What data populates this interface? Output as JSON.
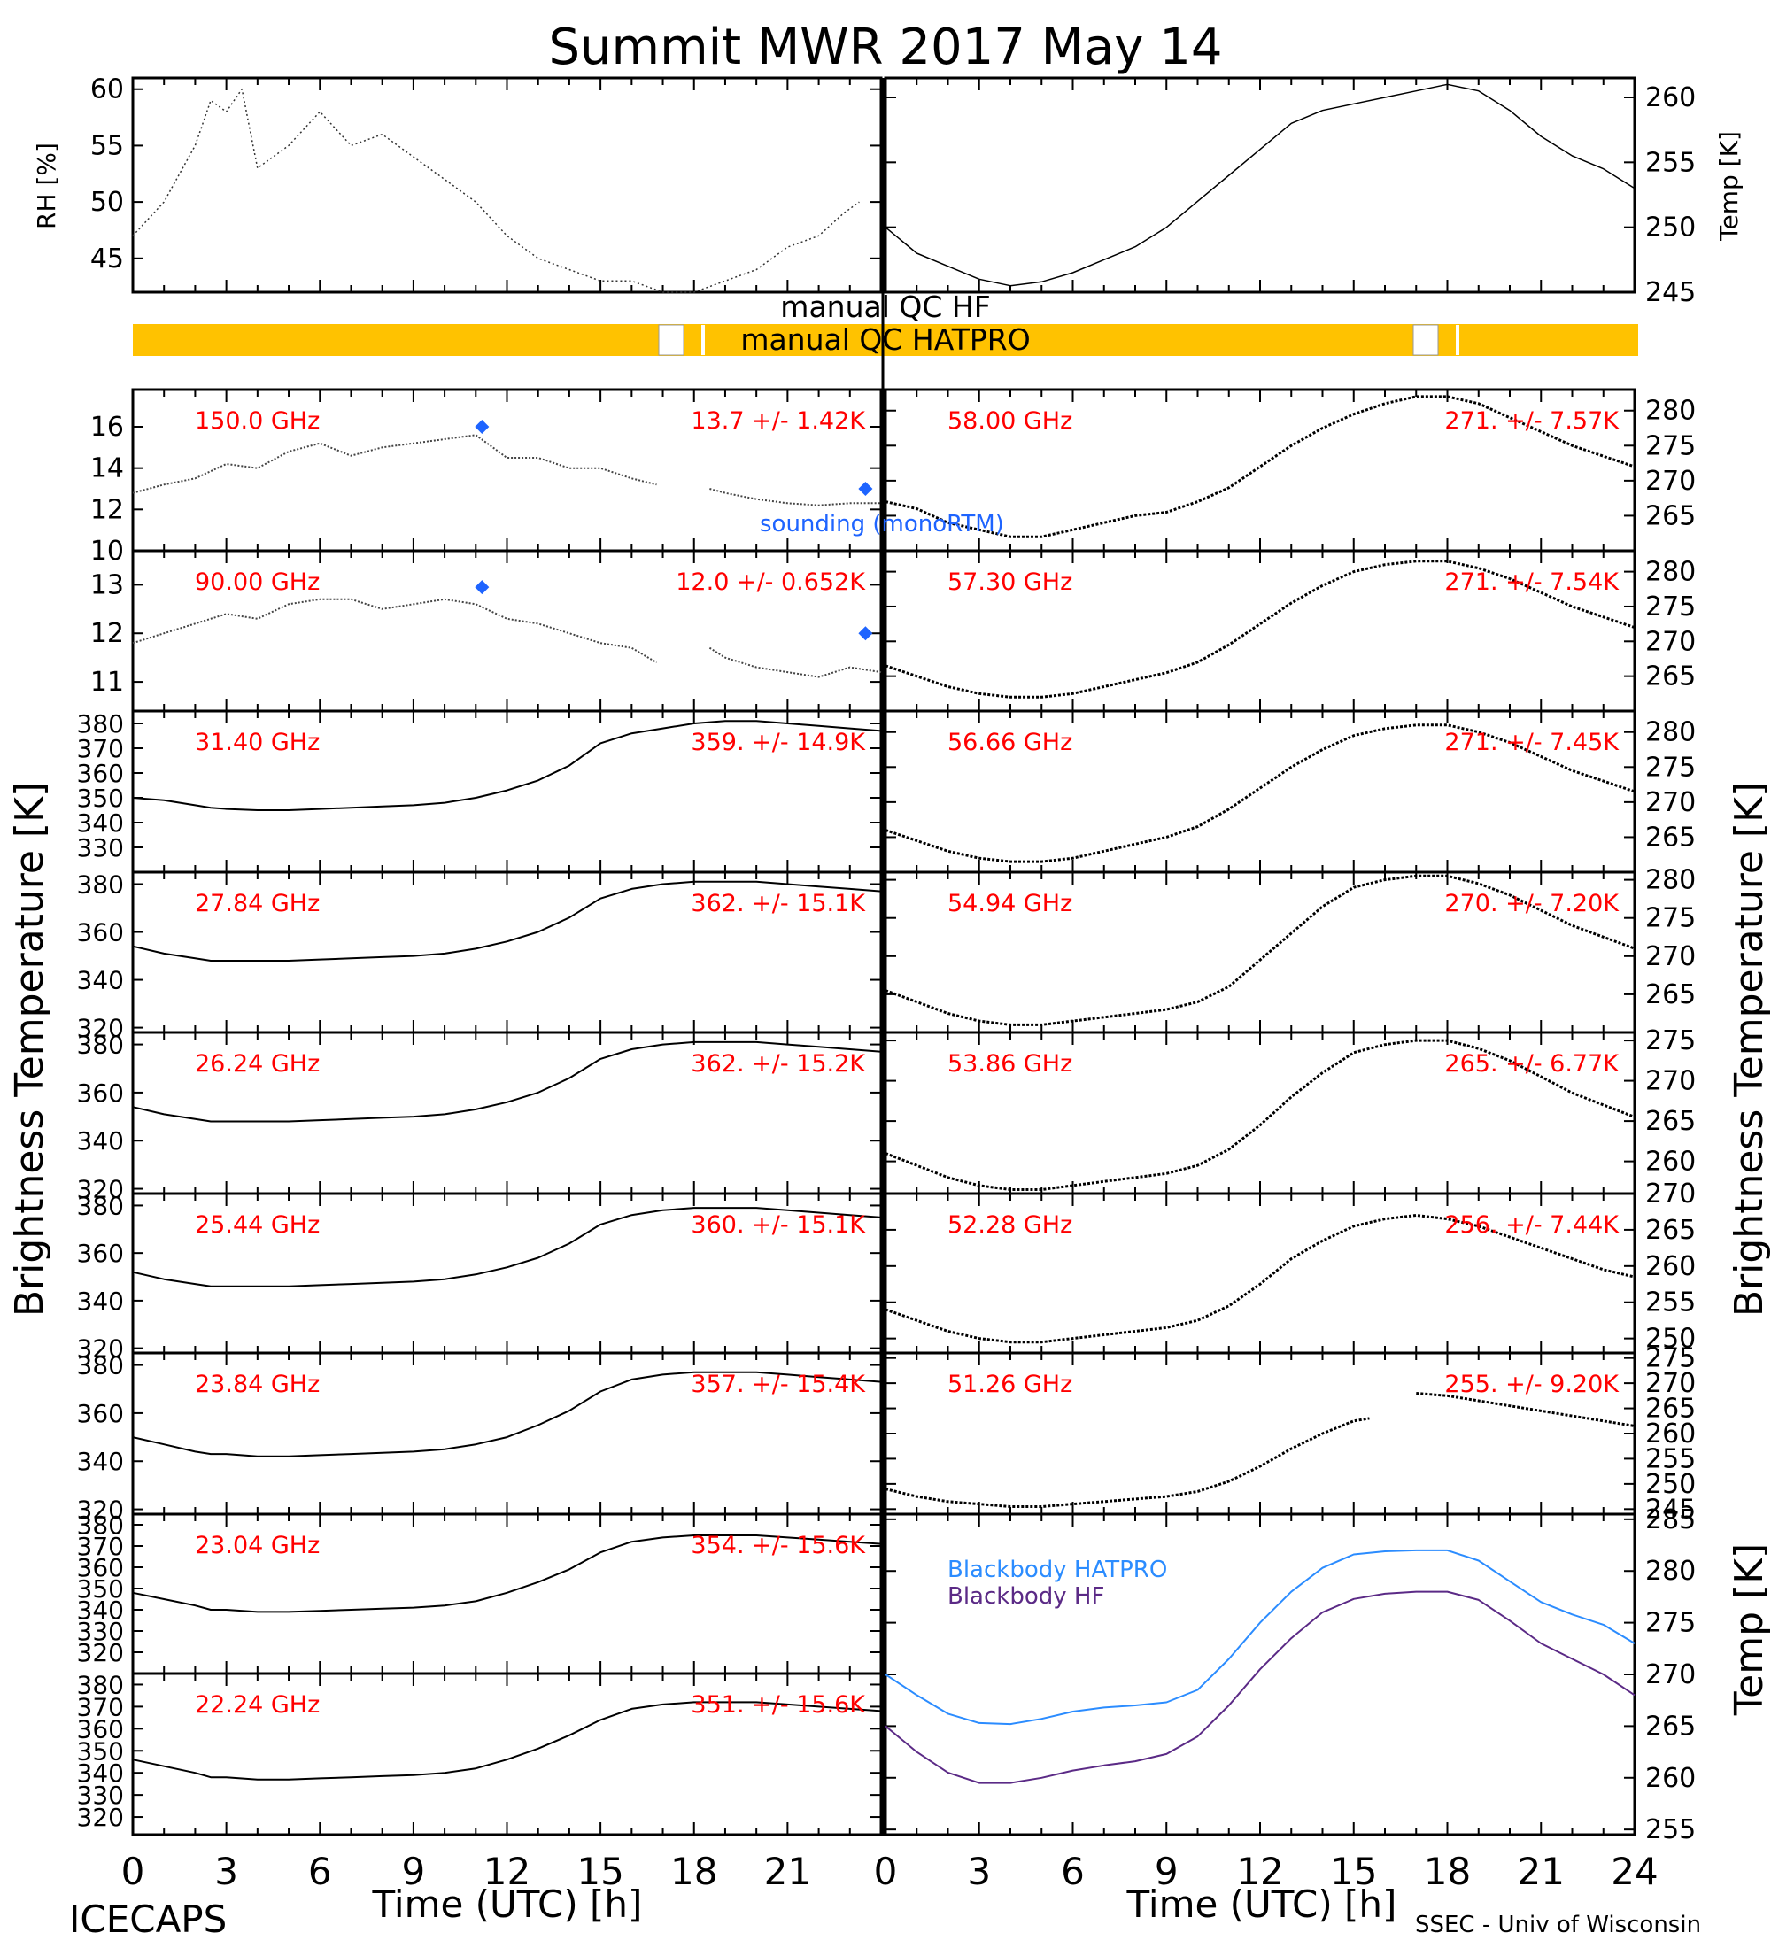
{
  "title": "Summit MWR 2017 May 14",
  "footer": {
    "left": "ICECAPS",
    "right": "SSEC - Univ of Wisconsin"
  },
  "colors": {
    "qc_bar": "#FFC200",
    "label_red": "#FF0000",
    "sounding_blue": "#1E64FF",
    "bb_hatpro": "#2B8CFF",
    "bb_hf": "#5B2A86",
    "trace": "#000000"
  },
  "qc": {
    "label_hf": "manual QC HF",
    "label_hatpro": "manual QC HATPRO"
  },
  "axis_titles": {
    "rh": "RH [%]",
    "temp": "Temp [K]",
    "brightness": "Brightness Temperature [K]",
    "time": "Time (UTC) [h]"
  },
  "annotations": {
    "sounding": "sounding (monoRTM)",
    "bb_hatpro": "Blackbody HATPRO",
    "bb_hf": "Blackbody HF"
  },
  "x_ticks_left": [
    "0",
    "3",
    "6",
    "9",
    "12",
    "15",
    "18",
    "21"
  ],
  "x_ticks_right": [
    "0",
    "3",
    "6",
    "9",
    "12",
    "15",
    "18",
    "21",
    "24"
  ],
  "chart_data": [
    {
      "type": "line",
      "panel": "rh",
      "ylabel": "RH [%]",
      "x": [
        0,
        1,
        2,
        2.5,
        3,
        3.5,
        4,
        5,
        6,
        7,
        8,
        9,
        10,
        11,
        12,
        13,
        14,
        15,
        16,
        17,
        18,
        19,
        20,
        21,
        22,
        22.8,
        23.3
      ],
      "values": [
        47,
        50,
        55,
        59,
        58,
        60,
        53,
        55,
        58,
        55,
        56,
        54,
        52,
        50,
        47,
        45,
        44,
        43,
        43,
        42,
        42,
        43,
        44,
        46,
        47,
        49,
        50
      ],
      "ylim": [
        42,
        61
      ],
      "yticks": [
        45,
        50,
        55,
        60
      ],
      "xlim": [
        0,
        23.3
      ]
    },
    {
      "type": "line",
      "panel": "temp",
      "ylabel": "Temp [K]",
      "x": [
        0,
        1,
        2,
        3,
        4,
        5,
        6,
        7,
        8,
        9,
        10,
        11,
        12,
        13,
        14,
        15,
        16,
        17,
        18,
        19,
        20,
        21,
        22,
        23,
        24
      ],
      "values": [
        250,
        248,
        247,
        246,
        245.5,
        245.8,
        246.5,
        247.5,
        248.5,
        250,
        252,
        254,
        256,
        258,
        259,
        259.5,
        260,
        260.5,
        261,
        260.5,
        259,
        257,
        255.5,
        254.5,
        253
      ],
      "ylim": [
        245,
        261.5
      ],
      "yticks": [
        245,
        250,
        255,
        260
      ],
      "xlim": [
        0,
        24
      ]
    },
    {
      "type": "line",
      "panel": "tb",
      "label": "150.0 GHz",
      "stat": "13.7 +/- 1.42K",
      "x": [
        0,
        1,
        2,
        3,
        4,
        5,
        6,
        7,
        8,
        9,
        10,
        11,
        12,
        13,
        14,
        15,
        16,
        16.8,
        17.8,
        18.5,
        19,
        20,
        21,
        22,
        23,
        24
      ],
      "values": [
        12.8,
        13.2,
        13.5,
        14.2,
        14,
        14.8,
        15.2,
        14.6,
        15,
        15.2,
        15.4,
        15.6,
        14.5,
        14.5,
        14,
        14,
        13.5,
        13.2,
        null,
        13,
        12.8,
        12.5,
        12.3,
        12.2,
        12.3,
        12.3
      ],
      "ylim": [
        10,
        17.8
      ],
      "yticks": [
        10,
        12,
        14,
        16
      ],
      "sounding": {
        "x": [
          11.2,
          23.5
        ],
        "values": [
          16,
          13
        ]
      }
    },
    {
      "type": "line",
      "panel": "tb",
      "label": "58.00 GHz",
      "stat": "271. +/- 7.57K",
      "x": [
        0,
        1,
        2,
        3,
        4,
        5,
        6,
        7,
        8,
        9,
        10,
        11,
        12,
        13,
        14,
        15,
        16,
        17,
        18,
        19,
        20,
        21,
        22,
        23,
        24
      ],
      "values": [
        267,
        266,
        264,
        263,
        262,
        262,
        263,
        264,
        265,
        265.5,
        267,
        269,
        272,
        275,
        277.5,
        279.5,
        281,
        282,
        282,
        281,
        279,
        277,
        275,
        273.5,
        272
      ],
      "ylim": [
        260,
        283
      ],
      "yticks": [
        265,
        270,
        275,
        280
      ]
    },
    {
      "type": "line",
      "panel": "tb",
      "label": "90.00 GHz",
      "stat": "12.0 +/- 0.652K",
      "x": [
        0,
        1,
        2,
        3,
        4,
        5,
        6,
        7,
        8,
        9,
        10,
        11,
        12,
        13,
        14,
        15,
        16,
        16.8,
        17.8,
        18.5,
        19,
        20,
        21,
        22,
        23,
        24
      ],
      "values": [
        11.8,
        12,
        12.2,
        12.4,
        12.3,
        12.6,
        12.7,
        12.7,
        12.5,
        12.6,
        12.7,
        12.6,
        12.3,
        12.2,
        12,
        11.8,
        11.7,
        11.4,
        null,
        11.7,
        11.5,
        11.3,
        11.2,
        11.1,
        11.3,
        11.2
      ],
      "ylim": [
        10.4,
        13.7
      ],
      "yticks": [
        11,
        12,
        13
      ],
      "sounding": {
        "x": [
          11.2,
          23.5
        ],
        "values": [
          12.95,
          12
        ]
      }
    },
    {
      "type": "line",
      "panel": "tb",
      "label": "57.30 GHz",
      "stat": "271. +/- 7.54K",
      "x": [
        0,
        1,
        2,
        3,
        4,
        5,
        6,
        7,
        8,
        9,
        10,
        11,
        12,
        13,
        14,
        15,
        16,
        17,
        18,
        19,
        20,
        21,
        22,
        23,
        24
      ],
      "values": [
        266.5,
        265,
        263.5,
        262.5,
        262,
        262,
        262.5,
        263.5,
        264.5,
        265.5,
        267,
        269.5,
        272.5,
        275.5,
        278,
        280,
        281,
        281.5,
        281.5,
        280.5,
        279,
        277,
        275,
        273.5,
        272
      ],
      "ylim": [
        260,
        283
      ],
      "yticks": [
        265,
        270,
        275,
        280
      ]
    },
    {
      "type": "line",
      "panel": "tb",
      "label": "31.40 GHz",
      "stat": "359. +/- 14.9K",
      "x": [
        0,
        1,
        2,
        2.5,
        3,
        4,
        5,
        6,
        7,
        8,
        9,
        10,
        11,
        12,
        13,
        14,
        15,
        16,
        17,
        18,
        19,
        20,
        21,
        22,
        23,
        24
      ],
      "values": [
        350,
        349,
        347,
        346,
        345.5,
        345,
        345,
        345.5,
        346,
        346.5,
        347,
        348,
        350,
        353,
        357,
        363,
        372,
        376,
        378,
        380,
        381,
        381,
        380,
        379,
        378,
        377
      ],
      "ylim": [
        320,
        385
      ],
      "yticks": [
        330,
        340,
        350,
        360,
        370,
        380
      ]
    },
    {
      "type": "line",
      "panel": "tb",
      "label": "56.66 GHz",
      "stat": "271. +/- 7.45K",
      "x": [
        0,
        1,
        2,
        3,
        4,
        5,
        6,
        7,
        8,
        9,
        10,
        11,
        12,
        13,
        14,
        15,
        16,
        17,
        18,
        19,
        20,
        21,
        22,
        23,
        24
      ],
      "values": [
        266,
        264.5,
        263,
        262,
        261.5,
        261.5,
        262,
        263,
        264,
        265,
        266.5,
        269,
        272,
        275,
        277.5,
        279.5,
        280.5,
        281,
        281,
        280,
        278.5,
        276.5,
        274.5,
        273,
        271.5
      ],
      "ylim": [
        260,
        283
      ],
      "yticks": [
        265,
        270,
        275,
        280
      ]
    },
    {
      "type": "line",
      "panel": "tb",
      "label": "27.84 GHz",
      "stat": "362. +/- 15.1K",
      "x": [
        0,
        1,
        2,
        2.5,
        3,
        4,
        5,
        6,
        7,
        8,
        9,
        10,
        11,
        12,
        13,
        14,
        15,
        16,
        17,
        18,
        19,
        20,
        21,
        22,
        23,
        24
      ],
      "values": [
        354,
        351,
        349,
        348,
        348,
        348,
        348,
        348.5,
        349,
        349.5,
        350,
        351,
        353,
        356,
        360,
        366,
        374,
        378,
        380,
        381,
        381,
        381,
        380,
        379,
        378,
        377
      ],
      "ylim": [
        318,
        385
      ],
      "yticks": [
        320,
        340,
        360,
        380
      ]
    },
    {
      "type": "line",
      "panel": "tb",
      "label": "54.94 GHz",
      "stat": "270. +/- 7.20K",
      "x": [
        0,
        1,
        2,
        3,
        4,
        5,
        6,
        7,
        8,
        9,
        10,
        11,
        12,
        13,
        14,
        15,
        16,
        17,
        18,
        19,
        20,
        21,
        22,
        23,
        24
      ],
      "values": [
        265.5,
        264,
        262.5,
        261.5,
        261,
        261,
        261.5,
        262,
        262.5,
        263,
        264,
        266,
        269.5,
        273,
        276.5,
        279,
        280,
        280.5,
        280.5,
        279.5,
        278,
        276,
        274,
        272.5,
        271
      ],
      "ylim": [
        260,
        281
      ],
      "yticks": [
        265,
        270,
        275,
        280
      ]
    },
    {
      "type": "line",
      "panel": "tb",
      "label": "26.24 GHz",
      "stat": "362. +/- 15.2K",
      "x": [
        0,
        1,
        2,
        2.5,
        3,
        4,
        5,
        6,
        7,
        8,
        9,
        10,
        11,
        12,
        13,
        14,
        15,
        16,
        17,
        18,
        19,
        20,
        21,
        22,
        23,
        24
      ],
      "values": [
        354,
        351,
        349,
        348,
        348,
        348,
        348,
        348.5,
        349,
        349.5,
        350,
        351,
        353,
        356,
        360,
        366,
        374,
        378,
        380,
        381,
        381,
        381,
        380,
        379,
        378,
        377
      ],
      "ylim": [
        318,
        385
      ],
      "yticks": [
        320,
        340,
        360,
        380
      ]
    },
    {
      "type": "line",
      "panel": "tb",
      "label": "53.86 GHz",
      "stat": "265. +/- 6.77K",
      "x": [
        0,
        1,
        2,
        3,
        4,
        5,
        6,
        7,
        8,
        9,
        10,
        11,
        12,
        13,
        14,
        15,
        16,
        17,
        18,
        19,
        20,
        21,
        22,
        23,
        24
      ],
      "values": [
        261,
        259.5,
        258,
        257,
        256.5,
        256.5,
        257,
        257.5,
        258,
        258.5,
        259.5,
        261.5,
        264.5,
        268,
        271,
        273.5,
        274.5,
        275,
        275,
        274,
        272.5,
        270.5,
        268.5,
        267,
        265.5
      ],
      "ylim": [
        256,
        276
      ],
      "yticks": [
        260,
        265,
        270,
        275
      ]
    },
    {
      "type": "line",
      "panel": "tb",
      "label": "25.44 GHz",
      "stat": "360. +/- 15.1K",
      "x": [
        0,
        1,
        2,
        2.5,
        3,
        4,
        5,
        6,
        7,
        8,
        9,
        10,
        11,
        12,
        13,
        14,
        15,
        16,
        17,
        18,
        19,
        20,
        21,
        22,
        23,
        24
      ],
      "values": [
        352,
        349,
        347,
        346,
        346,
        346,
        346,
        346.5,
        347,
        347.5,
        348,
        349,
        351,
        354,
        358,
        364,
        372,
        376,
        378,
        379,
        379,
        379,
        378,
        377,
        376,
        375
      ],
      "ylim": [
        318,
        385
      ],
      "yticks": [
        320,
        340,
        360,
        380
      ]
    },
    {
      "type": "line",
      "panel": "tb",
      "label": "52.28 GHz",
      "stat": "256. +/- 7.44K",
      "x": [
        0,
        1,
        2,
        3,
        4,
        5,
        6,
        7,
        8,
        9,
        10,
        11,
        12,
        13,
        14,
        15,
        16,
        17,
        18,
        19,
        20,
        21,
        22,
        23,
        24
      ],
      "values": [
        254,
        252.5,
        251,
        250,
        249.5,
        249.5,
        250,
        250.5,
        251,
        251.5,
        252.5,
        254.5,
        257.5,
        261,
        263.5,
        265.5,
        266.5,
        267,
        266.5,
        265.5,
        264,
        262.5,
        261,
        259.5,
        258.5
      ],
      "ylim": [
        248,
        270
      ],
      "yticks": [
        250,
        255,
        260,
        265,
        270
      ]
    },
    {
      "type": "line",
      "panel": "tb",
      "label": "23.84 GHz",
      "stat": "357. +/- 15.4K",
      "x": [
        0,
        1,
        2,
        2.5,
        3,
        4,
        5,
        6,
        7,
        8,
        9,
        10,
        11,
        12,
        13,
        14,
        15,
        16,
        17,
        18,
        19,
        20,
        21,
        22,
        23,
        24
      ],
      "values": [
        350,
        347,
        344,
        343,
        343,
        342,
        342,
        342.5,
        343,
        343.5,
        344,
        345,
        347,
        350,
        355,
        361,
        369,
        374,
        376,
        377,
        377,
        377,
        376,
        375,
        374,
        373
      ],
      "ylim": [
        318,
        385
      ],
      "yticks": [
        320,
        340,
        360,
        380
      ]
    },
    {
      "type": "line",
      "panel": "tb",
      "label": "51.26 GHz",
      "stat": "255. +/- 9.20K",
      "x": [
        0,
        1,
        2,
        3,
        4,
        5,
        6,
        7,
        8,
        9,
        10,
        11,
        12,
        13,
        14,
        15,
        15.5,
        16,
        17,
        18,
        19,
        20,
        21,
        22,
        23,
        24
      ],
      "values": [
        249,
        247.5,
        246.5,
        246,
        245.5,
        245.5,
        246,
        246.5,
        247,
        247.5,
        248.5,
        250.5,
        253.5,
        257,
        260,
        262.5,
        263,
        null,
        268,
        267.5,
        266.5,
        265.5,
        264.5,
        263.5,
        262.5,
        261.5
      ],
      "ylim": [
        244,
        276
      ],
      "yticks": [
        245,
        250,
        255,
        260,
        265,
        270,
        275
      ]
    },
    {
      "type": "line",
      "panel": "tb",
      "label": "23.04 GHz",
      "stat": "354. +/- 15.6K",
      "x": [
        0,
        1,
        2,
        2.5,
        3,
        4,
        5,
        6,
        7,
        8,
        9,
        10,
        11,
        12,
        13,
        14,
        15,
        16,
        17,
        18,
        19,
        20,
        21,
        22,
        23,
        24
      ],
      "values": [
        348,
        345,
        342,
        340,
        340,
        339,
        339,
        339.5,
        340,
        340.5,
        341,
        342,
        344,
        348,
        353,
        359,
        367,
        372,
        374,
        375,
        375,
        375,
        374,
        373,
        372,
        371
      ],
      "ylim": [
        310,
        385
      ],
      "yticks": [
        320,
        330,
        340,
        350,
        360,
        370,
        380
      ]
    },
    {
      "type": "line",
      "panel": "tb",
      "label": "22.24 GHz",
      "stat": "351. +/- 15.6K",
      "x": [
        0,
        1,
        2,
        2.5,
        3,
        4,
        5,
        6,
        7,
        8,
        9,
        10,
        11,
        12,
        13,
        14,
        15,
        16,
        17,
        18,
        19,
        20,
        21,
        22,
        23,
        24
      ],
      "values": [
        346,
        343,
        340,
        338,
        338,
        337,
        337,
        337.5,
        338,
        338.5,
        339,
        340,
        342,
        346,
        351,
        357,
        364,
        369,
        371,
        372,
        372,
        372,
        371,
        370,
        369,
        368
      ],
      "ylim": [
        312,
        385
      ],
      "yticks": [
        320,
        330,
        340,
        350,
        360,
        370,
        380
      ]
    },
    {
      "type": "line",
      "panel": "blackbody",
      "ylabel": "Temp [K]",
      "x": [
        0,
        1,
        2,
        3,
        4,
        5,
        6,
        7,
        8,
        9,
        10,
        11,
        12,
        13,
        14,
        15,
        16,
        17,
        18,
        19,
        20,
        21,
        22,
        23,
        24
      ],
      "series": [
        {
          "name": "Blackbody HATPRO",
          "values": [
            270,
            268,
            266.2,
            265.3,
            265.2,
            265.7,
            266.4,
            266.8,
            267,
            267.3,
            268.5,
            271.5,
            275,
            278,
            280.3,
            281.6,
            281.9,
            282,
            282,
            281,
            279,
            277,
            275.8,
            274.8,
            273
          ]
        },
        {
          "name": "Blackbody HF",
          "values": [
            265,
            262.5,
            260.5,
            259.5,
            259.5,
            260,
            260.7,
            261.2,
            261.6,
            262.3,
            264,
            267,
            270.5,
            273.5,
            276,
            277.3,
            277.8,
            278,
            278,
            277.2,
            275.2,
            273,
            271.5,
            270,
            268
          ]
        }
      ],
      "ylim": [
        254.5,
        285.5
      ],
      "yticks": [
        255,
        260,
        265,
        270,
        275,
        280,
        285
      ]
    }
  ]
}
